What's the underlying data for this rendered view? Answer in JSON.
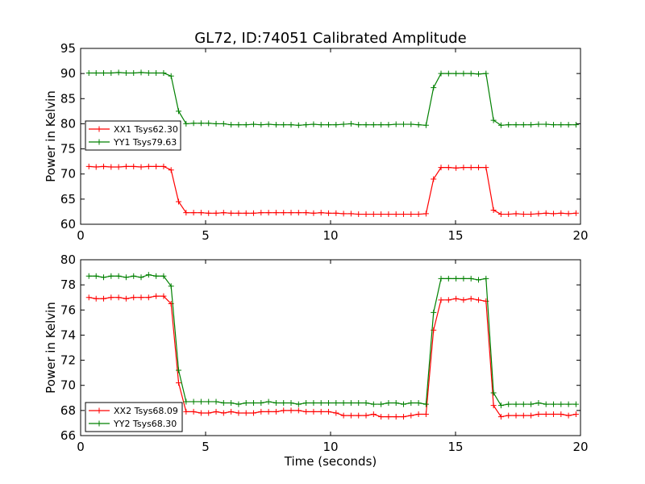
{
  "title": "GL72, ID:74051 Calibrated Amplitude",
  "chart_data": [
    {
      "type": "line",
      "ylabel": "Power in Kelvin",
      "xlabel": "",
      "xlim": [
        0,
        20
      ],
      "ylim": [
        60,
        95
      ],
      "xticks": [
        0,
        5,
        10,
        15,
        20
      ],
      "yticks": [
        60,
        65,
        70,
        75,
        80,
        85,
        90,
        95
      ],
      "grid": false,
      "legend_position": "center-left",
      "x": [
        0.33,
        0.62,
        0.92,
        1.22,
        1.52,
        1.82,
        2.12,
        2.42,
        2.72,
        3.02,
        3.32,
        3.62,
        3.92,
        4.22,
        4.52,
        4.82,
        5.12,
        5.42,
        5.72,
        6.02,
        6.32,
        6.62,
        6.92,
        7.22,
        7.52,
        7.82,
        8.12,
        8.42,
        8.72,
        9.02,
        9.32,
        9.62,
        9.92,
        10.22,
        10.52,
        10.82,
        11.12,
        11.42,
        11.72,
        12.02,
        12.32,
        12.62,
        12.92,
        13.22,
        13.52,
        13.82,
        14.12,
        14.42,
        14.72,
        15.02,
        15.32,
        15.62,
        15.92,
        16.22,
        16.52,
        16.82,
        17.12,
        17.42,
        17.72,
        18.02,
        18.32,
        18.62,
        18.92,
        19.22,
        19.52,
        19.82
      ],
      "series": [
        {
          "name": "XX1 Tsys62.30",
          "color": "#ff0000",
          "values": [
            71.5,
            71.4,
            71.5,
            71.4,
            71.4,
            71.5,
            71.5,
            71.4,
            71.5,
            71.5,
            71.5,
            70.8,
            64.5,
            62.3,
            62.3,
            62.3,
            62.2,
            62.2,
            62.3,
            62.2,
            62.2,
            62.2,
            62.2,
            62.3,
            62.3,
            62.3,
            62.3,
            62.3,
            62.3,
            62.3,
            62.2,
            62.3,
            62.2,
            62.2,
            62.1,
            62.1,
            62.0,
            62.0,
            62.0,
            62.0,
            62.0,
            62.0,
            62.0,
            62.0,
            62.0,
            62.1,
            69.0,
            71.3,
            71.3,
            71.2,
            71.3,
            71.3,
            71.3,
            71.3,
            62.8,
            62.0,
            62.0,
            62.1,
            62.0,
            62.0,
            62.1,
            62.2,
            62.1,
            62.2,
            62.1,
            62.2
          ]
        },
        {
          "name": "YY1 Tsys79.63",
          "color": "#008000",
          "values": [
            90.1,
            90.1,
            90.1,
            90.1,
            90.2,
            90.1,
            90.1,
            90.2,
            90.1,
            90.1,
            90.1,
            89.5,
            82.5,
            80.0,
            80.1,
            80.1,
            80.1,
            80.0,
            80.0,
            79.8,
            79.8,
            79.8,
            79.9,
            79.8,
            79.9,
            79.8,
            79.8,
            79.8,
            79.7,
            79.8,
            79.9,
            79.8,
            79.8,
            79.8,
            79.9,
            80.0,
            79.8,
            79.8,
            79.8,
            79.8,
            79.8,
            79.9,
            79.9,
            79.9,
            79.8,
            79.7,
            87.2,
            90.0,
            90.0,
            90.0,
            90.0,
            90.0,
            89.9,
            90.0,
            80.7,
            79.7,
            79.8,
            79.8,
            79.8,
            79.8,
            79.9,
            79.9,
            79.8,
            79.8,
            79.8,
            79.8
          ]
        }
      ]
    },
    {
      "type": "line",
      "ylabel": "Power in Kelvin",
      "xlabel": "Time (seconds)",
      "xlim": [
        0,
        20
      ],
      "ylim": [
        66,
        80
      ],
      "xticks": [
        0,
        5,
        10,
        15,
        20
      ],
      "yticks": [
        66,
        68,
        70,
        72,
        74,
        76,
        78,
        80
      ],
      "grid": false,
      "legend_position": "bottom-left",
      "x": [
        0.33,
        0.62,
        0.92,
        1.22,
        1.52,
        1.82,
        2.12,
        2.42,
        2.72,
        3.02,
        3.32,
        3.62,
        3.92,
        4.22,
        4.52,
        4.82,
        5.12,
        5.42,
        5.72,
        6.02,
        6.32,
        6.62,
        6.92,
        7.22,
        7.52,
        7.82,
        8.12,
        8.42,
        8.72,
        9.02,
        9.32,
        9.62,
        9.92,
        10.22,
        10.52,
        10.82,
        11.12,
        11.42,
        11.72,
        12.02,
        12.32,
        12.62,
        12.92,
        13.22,
        13.52,
        13.82,
        14.12,
        14.42,
        14.72,
        15.02,
        15.32,
        15.62,
        15.92,
        16.22,
        16.52,
        16.82,
        17.12,
        17.42,
        17.72,
        18.02,
        18.32,
        18.62,
        18.92,
        19.22,
        19.52,
        19.82
      ],
      "series": [
        {
          "name": "XX2 Tsys68.09",
          "color": "#ff0000",
          "values": [
            77.0,
            76.9,
            76.9,
            77.0,
            77.0,
            76.9,
            77.0,
            77.0,
            77.0,
            77.1,
            77.1,
            76.5,
            70.2,
            67.9,
            67.9,
            67.8,
            67.8,
            67.9,
            67.8,
            67.9,
            67.8,
            67.8,
            67.8,
            67.9,
            67.9,
            67.9,
            68.0,
            68.0,
            68.0,
            67.9,
            67.9,
            67.9,
            67.9,
            67.8,
            67.6,
            67.6,
            67.6,
            67.6,
            67.7,
            67.5,
            67.5,
            67.5,
            67.5,
            67.6,
            67.7,
            67.7,
            74.4,
            76.8,
            76.8,
            76.9,
            76.8,
            76.9,
            76.8,
            76.7,
            68.4,
            67.5,
            67.6,
            67.6,
            67.6,
            67.6,
            67.7,
            67.7,
            67.7,
            67.7,
            67.6,
            67.7
          ]
        },
        {
          "name": "YY2 Tsys68.30",
          "color": "#008000",
          "values": [
            78.7,
            78.7,
            78.6,
            78.7,
            78.7,
            78.6,
            78.7,
            78.6,
            78.8,
            78.7,
            78.7,
            77.9,
            71.2,
            68.7,
            68.7,
            68.7,
            68.7,
            68.7,
            68.6,
            68.6,
            68.5,
            68.6,
            68.6,
            68.6,
            68.7,
            68.6,
            68.6,
            68.6,
            68.5,
            68.6,
            68.6,
            68.6,
            68.6,
            68.6,
            68.6,
            68.6,
            68.6,
            68.6,
            68.5,
            68.5,
            68.6,
            68.6,
            68.5,
            68.6,
            68.6,
            68.5,
            75.8,
            78.5,
            78.5,
            78.5,
            78.5,
            78.5,
            78.4,
            78.5,
            69.4,
            68.4,
            68.5,
            68.5,
            68.5,
            68.5,
            68.6,
            68.5,
            68.5,
            68.5,
            68.5,
            68.5
          ]
        }
      ]
    }
  ]
}
